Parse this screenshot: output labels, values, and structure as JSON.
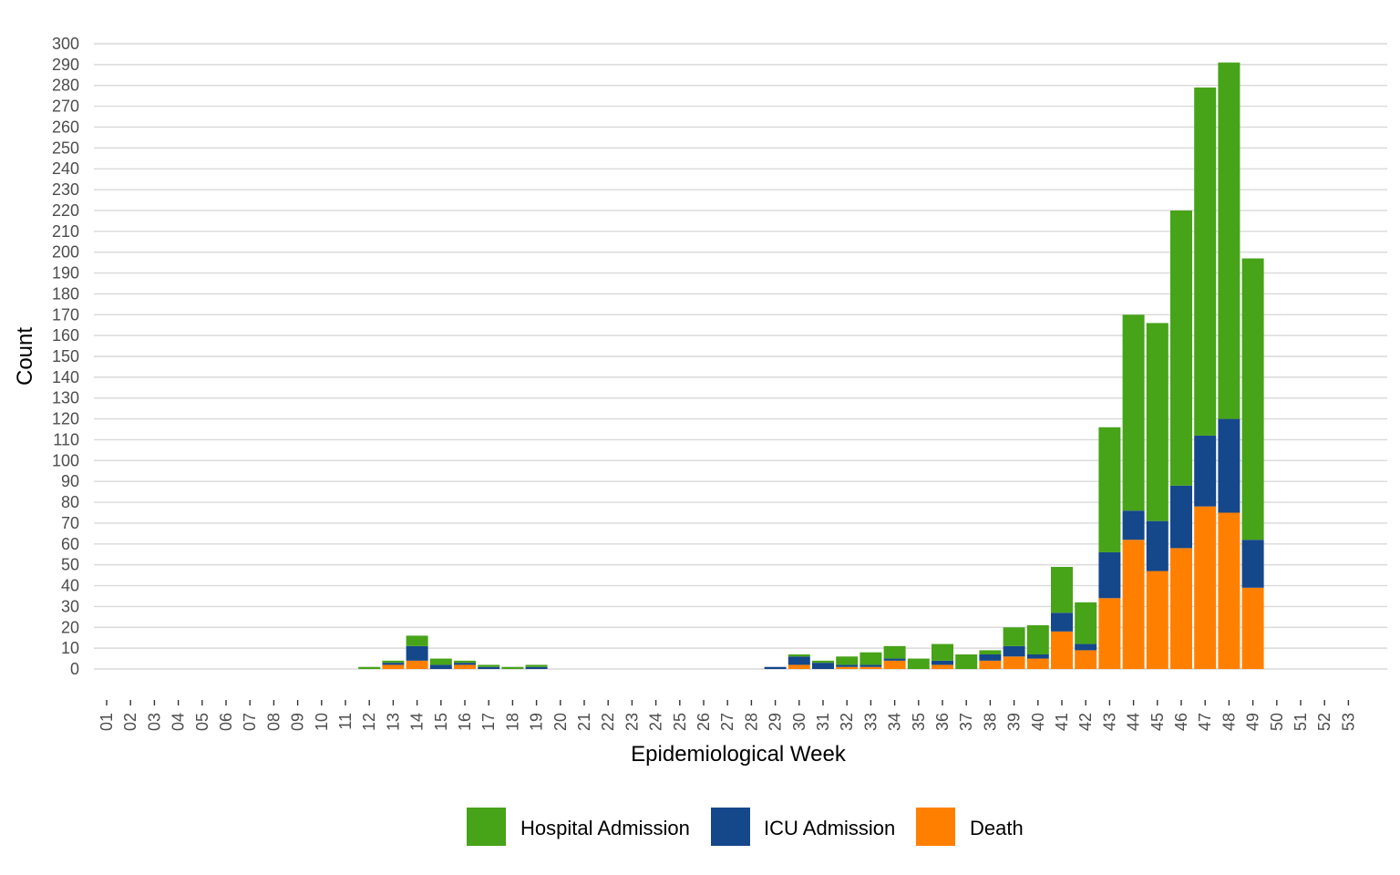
{
  "chart_data": {
    "type": "bar",
    "stacked": true,
    "xlabel": "Epidemiological Week",
    "ylabel": "Count",
    "ylim": [
      0,
      300
    ],
    "y_ticks": [
      0,
      10,
      20,
      30,
      40,
      50,
      60,
      70,
      80,
      90,
      100,
      110,
      120,
      130,
      140,
      150,
      160,
      170,
      180,
      190,
      200,
      210,
      220,
      230,
      240,
      250,
      260,
      270,
      280,
      290,
      300
    ],
    "grid": "horizontal",
    "legend_position": "bottom",
    "categories": [
      "01",
      "02",
      "03",
      "04",
      "05",
      "06",
      "07",
      "08",
      "09",
      "10",
      "11",
      "12",
      "13",
      "14",
      "15",
      "16",
      "17",
      "18",
      "19",
      "20",
      "21",
      "22",
      "23",
      "24",
      "25",
      "26",
      "27",
      "28",
      "29",
      "30",
      "31",
      "32",
      "33",
      "34",
      "35",
      "36",
      "37",
      "38",
      "39",
      "40",
      "41",
      "42",
      "43",
      "44",
      "45",
      "46",
      "47",
      "48",
      "49",
      "50",
      "51",
      "52",
      "53"
    ],
    "series": [
      {
        "name": "Death",
        "color": "#FF8000",
        "values": [
          0,
          0,
          0,
          0,
          0,
          0,
          0,
          0,
          0,
          0,
          0,
          0,
          2,
          4,
          0,
          2,
          0,
          0,
          0,
          0,
          0,
          0,
          0,
          0,
          0,
          0,
          0,
          0,
          0,
          2,
          0,
          1,
          1,
          4,
          0,
          2,
          0,
          4,
          6,
          5,
          18,
          9,
          34,
          62,
          47,
          58,
          78,
          75,
          39,
          0,
          0,
          0,
          0
        ]
      },
      {
        "name": "ICU Admission",
        "color": "#15478B",
        "values": [
          0,
          0,
          0,
          0,
          0,
          0,
          0,
          0,
          0,
          0,
          0,
          0,
          1,
          7,
          2,
          1,
          1,
          0,
          1,
          0,
          0,
          0,
          0,
          0,
          0,
          0,
          0,
          0,
          1,
          4,
          3,
          1,
          1,
          1,
          0,
          2,
          0,
          3,
          5,
          2,
          9,
          3,
          22,
          14,
          24,
          30,
          34,
          45,
          23,
          0,
          0,
          0,
          0
        ]
      },
      {
        "name": "Hospital Admission",
        "color": "#47A318",
        "values": [
          0,
          0,
          0,
          0,
          0,
          0,
          0,
          0,
          0,
          0,
          0,
          1,
          1,
          5,
          3,
          1,
          1,
          1,
          1,
          0,
          0,
          0,
          0,
          0,
          0,
          0,
          0,
          0,
          0,
          1,
          1,
          4,
          6,
          6,
          5,
          8,
          7,
          2,
          9,
          14,
          22,
          20,
          60,
          94,
          95,
          132,
          167,
          171,
          135,
          0,
          0,
          0,
          0
        ]
      }
    ],
    "legend": [
      "Hospital Admission",
      "ICU Admission",
      "Death"
    ]
  }
}
